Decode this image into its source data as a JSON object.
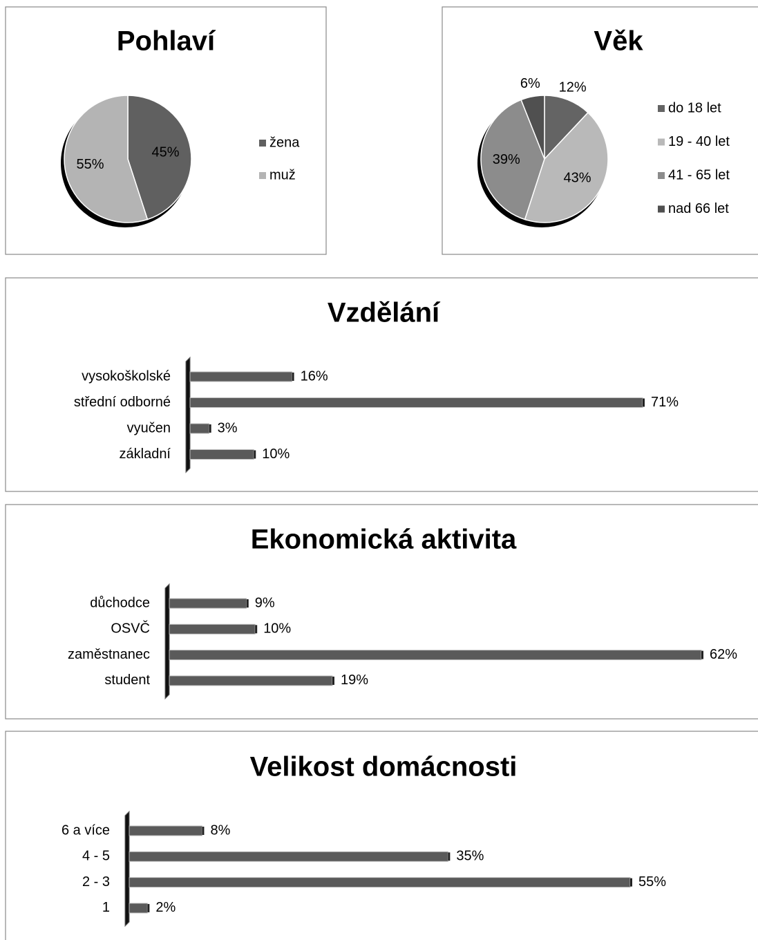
{
  "chart_data": [
    {
      "type": "pie",
      "title": "Pohlaví",
      "categories": [
        "žena",
        "muž"
      ],
      "values": [
        45,
        55
      ],
      "value_labels": [
        "45%",
        "55%"
      ],
      "colors": [
        "#606060",
        "#b4b4b4"
      ]
    },
    {
      "type": "pie",
      "title": "Věk",
      "categories": [
        "do 18 let",
        "19 - 40 let",
        "41 - 65 let",
        "nad 66 let"
      ],
      "values": [
        12,
        43,
        39,
        6
      ],
      "value_labels": [
        "12%",
        "43%",
        "39%",
        "6%"
      ],
      "colors": [
        "#646464",
        "#b9b9b9",
        "#8c8c8c",
        "#505050"
      ]
    },
    {
      "type": "bar",
      "title": "Vzdělání",
      "categories": [
        "vysokoškolské",
        "střední odborné",
        "vyučen",
        "základní"
      ],
      "values": [
        16,
        71,
        3,
        10
      ],
      "value_labels": [
        "16%",
        "71%",
        "3%",
        "10%"
      ],
      "color": "#5a5a5a"
    },
    {
      "type": "bar",
      "title": "Ekonomická aktivita",
      "categories": [
        "důchodce",
        "OSVČ",
        "zaměstnanec",
        "student"
      ],
      "values": [
        9,
        10,
        62,
        19
      ],
      "value_labels": [
        "9%",
        "10%",
        "62%",
        "19%"
      ],
      "color": "#5a5a5a"
    },
    {
      "type": "bar",
      "title": "Velikost domácnosti",
      "categories": [
        "6 a více",
        "4 - 5",
        "2 - 3",
        "1"
      ],
      "values": [
        8,
        35,
        55,
        2
      ],
      "value_labels": [
        "8%",
        "35%",
        "55%",
        "2%"
      ],
      "color": "#5a5a5a"
    }
  ]
}
